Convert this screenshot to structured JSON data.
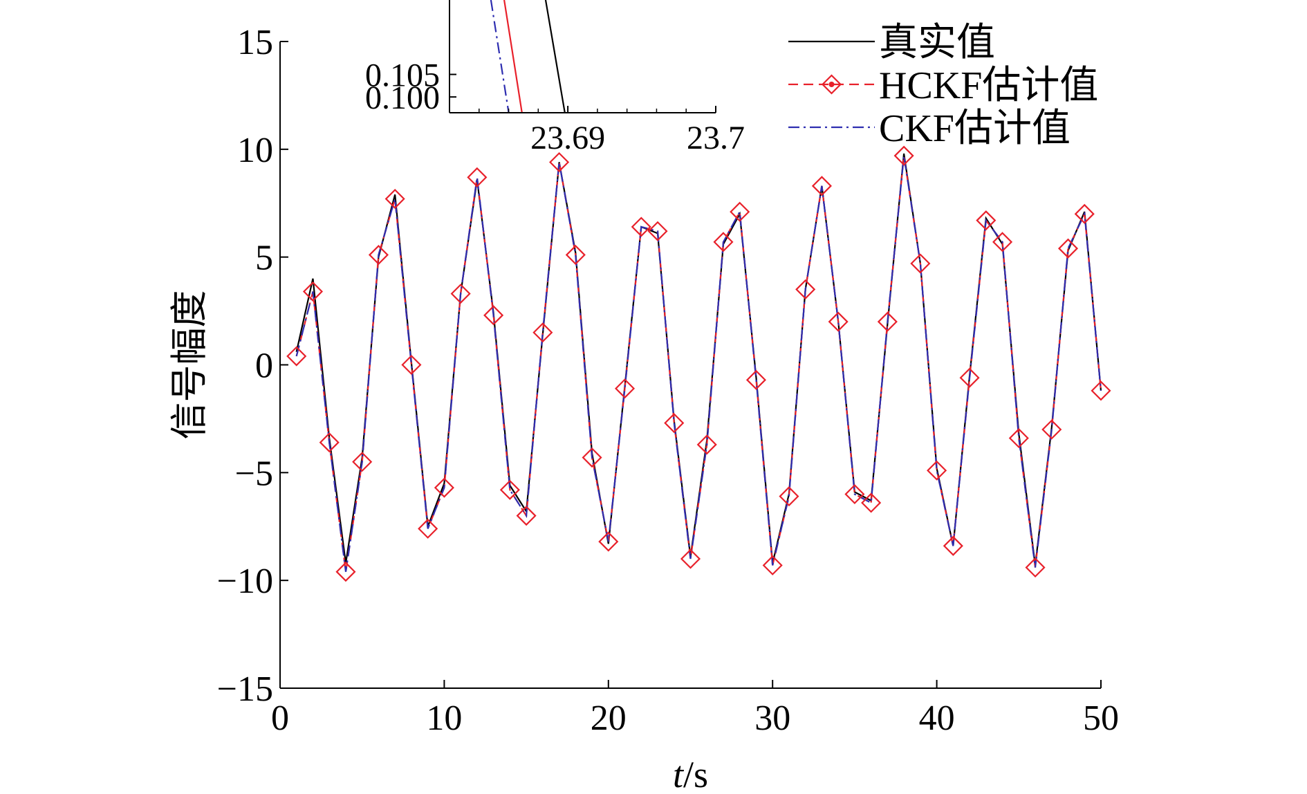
{
  "chart_data": [
    {
      "type": "line",
      "role": "main",
      "xlabel_italic": "t",
      "xlabel_unit": "/s",
      "ylabel": "信号幅度",
      "xlim": [
        0,
        50
      ],
      "ylim": [
        -15,
        15
      ],
      "xticks": [
        0,
        10,
        20,
        30,
        40,
        50
      ],
      "yticks": [
        -15,
        -10,
        -5,
        0,
        5,
        10,
        15
      ],
      "ytick_labels": [
        "−15",
        "−10",
        "−5",
        "0",
        "5",
        "10",
        "15"
      ],
      "legend_position": "top-right",
      "x": [
        1,
        2,
        3,
        4,
        5,
        6,
        7,
        8,
        9,
        10,
        11,
        12,
        13,
        14,
        15,
        16,
        17,
        18,
        19,
        20,
        21,
        22,
        23,
        24,
        25,
        26,
        27,
        28,
        29,
        30,
        31,
        32,
        33,
        34,
        35,
        36,
        37,
        38,
        39,
        40,
        41,
        42,
        43,
        44,
        45,
        46,
        47,
        48,
        49,
        50
      ],
      "series": [
        {
          "name": "真实值",
          "color": "#000000",
          "style": "solid",
          "values": [
            0.6,
            4.0,
            -3.4,
            -9.2,
            -4.3,
            5.0,
            7.9,
            0.1,
            -7.5,
            -5.5,
            3.3,
            8.6,
            2.4,
            -5.6,
            -6.8,
            1.4,
            9.4,
            5.2,
            -4.1,
            -8.3,
            -1.0,
            6.4,
            6.1,
            -2.6,
            -8.9,
            -3.5,
            5.6,
            7.0,
            -0.6,
            -9.2,
            -6.0,
            3.5,
            8.3,
            2.0,
            -5.9,
            -6.3,
            1.9,
            9.8,
            4.7,
            -4.8,
            -8.4,
            -0.5,
            6.8,
            5.6,
            -3.2,
            -9.3,
            -2.9,
            5.3,
            7.1,
            -1.2
          ]
        },
        {
          "name": "HCKF估计值",
          "color": "#e8202a",
          "style": "dashed",
          "marker": "diamond",
          "values": [
            0.4,
            3.4,
            -3.6,
            -9.6,
            -4.5,
            5.1,
            7.7,
            0.0,
            -7.6,
            -5.7,
            3.3,
            8.7,
            2.3,
            -5.8,
            -7.0,
            1.5,
            9.4,
            5.1,
            -4.3,
            -8.2,
            -1.1,
            6.4,
            6.2,
            -2.7,
            -9.0,
            -3.7,
            5.7,
            7.1,
            -0.7,
            -9.3,
            -6.1,
            3.5,
            8.3,
            2.0,
            -6.0,
            -6.4,
            2.0,
            9.7,
            4.7,
            -4.9,
            -8.4,
            -0.6,
            6.7,
            5.7,
            -3.4,
            -9.4,
            -3.0,
            5.4,
            7.0,
            -1.2
          ]
        },
        {
          "name": "CKF估计值",
          "color": "#2d2db0",
          "style": "dashdot",
          "values": [
            0.4,
            3.4,
            -3.6,
            -9.6,
            -4.5,
            5.1,
            7.7,
            0.0,
            -7.6,
            -5.7,
            3.3,
            8.7,
            2.3,
            -5.8,
            -7.0,
            1.5,
            9.4,
            5.1,
            -4.3,
            -8.2,
            -1.1,
            6.4,
            6.2,
            -2.7,
            -9.0,
            -3.7,
            5.7,
            7.1,
            -0.7,
            -9.3,
            -6.1,
            3.5,
            8.3,
            2.0,
            -6.0,
            -6.4,
            2.0,
            9.7,
            4.7,
            -4.9,
            -8.4,
            -0.6,
            6.7,
            5.7,
            -3.4,
            -9.4,
            -3.0,
            5.4,
            7.0,
            -1.2
          ]
        }
      ]
    },
    {
      "type": "line",
      "role": "inset-zoom",
      "xlim": [
        23.682,
        23.7
      ],
      "ylim": [
        0.0965,
        0.1215
      ],
      "xticks": [
        23.69,
        23.7
      ],
      "xtick_labels": [
        "23.69",
        "23.7"
      ],
      "yticks": [
        0.1,
        0.105
      ],
      "ytick_labels": [
        "0.100",
        "0.105"
      ],
      "series": [
        {
          "name": "真实值",
          "color": "#000000",
          "style": "solid",
          "x": [
            23.6885,
            23.6898
          ],
          "values": [
            0.1215,
            0.0965
          ]
        },
        {
          "name": "HCKF估计值",
          "color": "#e8202a",
          "style": "solid",
          "x": [
            23.6857,
            23.6869
          ],
          "values": [
            0.1215,
            0.0965
          ]
        },
        {
          "name": "CKF估计值",
          "color": "#2d2db0",
          "style": "dashdot",
          "x": [
            23.6848,
            23.686
          ],
          "values": [
            0.1215,
            0.0965
          ]
        }
      ]
    }
  ]
}
